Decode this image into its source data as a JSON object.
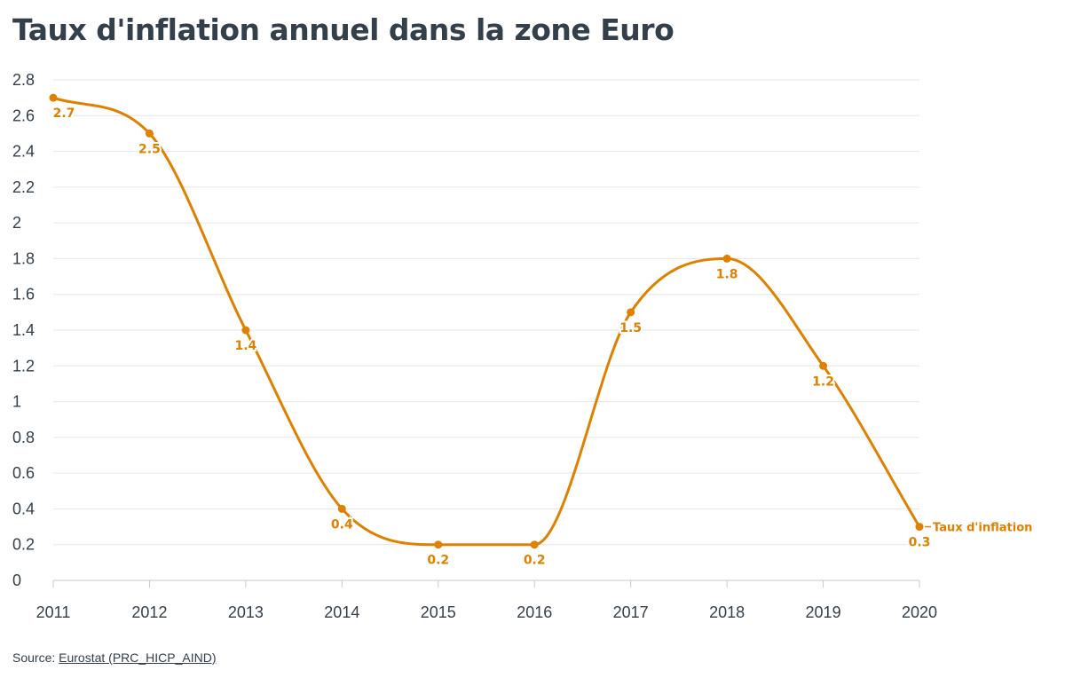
{
  "title": "Taux d'inflation annuel dans la zone Euro",
  "source": {
    "prefix": "Source: ",
    "link_text": "Eurostat (PRC_HICP_AIND)"
  },
  "colors": {
    "line": "#e08000",
    "text": "#333f4a",
    "grid": "#e6e6e6",
    "axis": "#c8c8c8"
  },
  "chart_data": {
    "type": "line",
    "title": "Taux d'inflation annuel dans la zone Euro",
    "xlabel": "",
    "ylabel": "",
    "x": [
      "2011",
      "2012",
      "2013",
      "2014",
      "2015",
      "2016",
      "2017",
      "2018",
      "2019",
      "2020"
    ],
    "series": [
      {
        "name": "Taux d'inflation",
        "values": [
          2.7,
          2.5,
          1.4,
          0.4,
          0.2,
          0.2,
          1.5,
          1.8,
          1.2,
          0.3
        ]
      }
    ],
    "data_labels": [
      "2.7",
      "2.5",
      "1.4",
      "0.4",
      "0.2",
      "0.2",
      "1.5",
      "1.8",
      "1.2",
      "0.3"
    ],
    "ylim": [
      0,
      2.8
    ],
    "yticks": [
      "0",
      "0.2",
      "0.4",
      "0.6",
      "0.8",
      "1",
      "1.2",
      "1.4",
      "1.6",
      "1.8",
      "2",
      "2.2",
      "2.4",
      "2.6",
      "2.8"
    ],
    "grid": true,
    "legend": "series label at end of line",
    "smooth": true
  }
}
